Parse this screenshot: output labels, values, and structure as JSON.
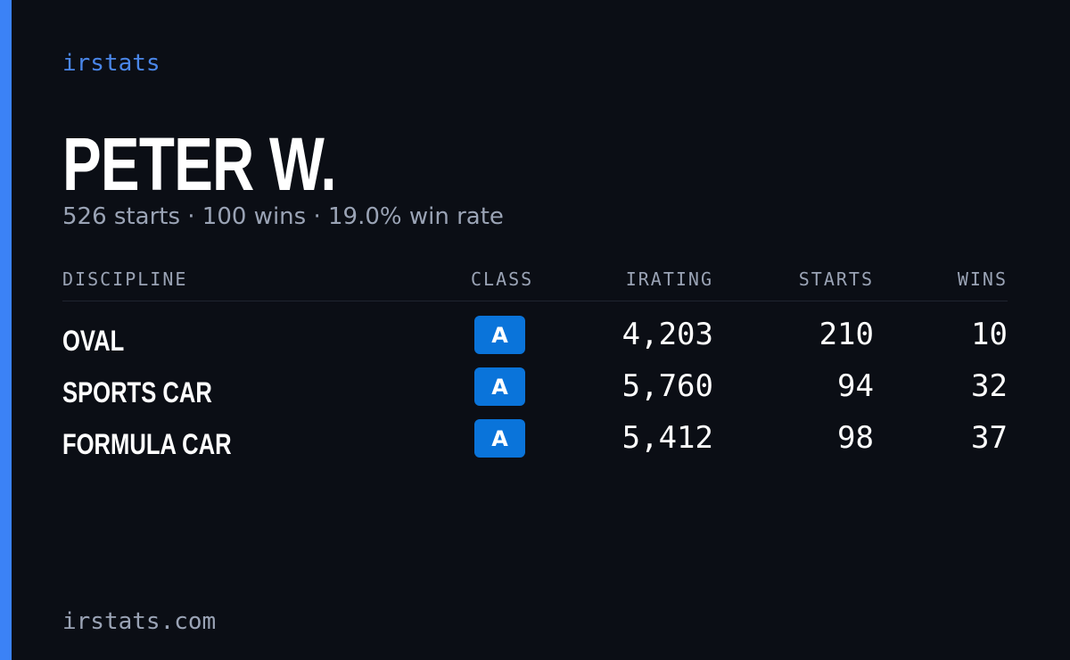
{
  "brand": "irstats",
  "profile": {
    "name": "PETER W.",
    "summary": "526 starts · 100 wins · 19.0% win rate"
  },
  "table": {
    "headers": [
      "DISCIPLINE",
      "CLASS",
      "IRATING",
      "STARTS",
      "WINS"
    ],
    "rows": [
      [
        "OVAL",
        "A",
        "4,203",
        "210",
        "10"
      ],
      [
        "SPORTS CAR",
        "A",
        "5,760",
        "94",
        "32"
      ],
      [
        "FORMULA CAR",
        "A",
        "5,412",
        "98",
        "37"
      ]
    ]
  },
  "footer": "irstats.com"
}
